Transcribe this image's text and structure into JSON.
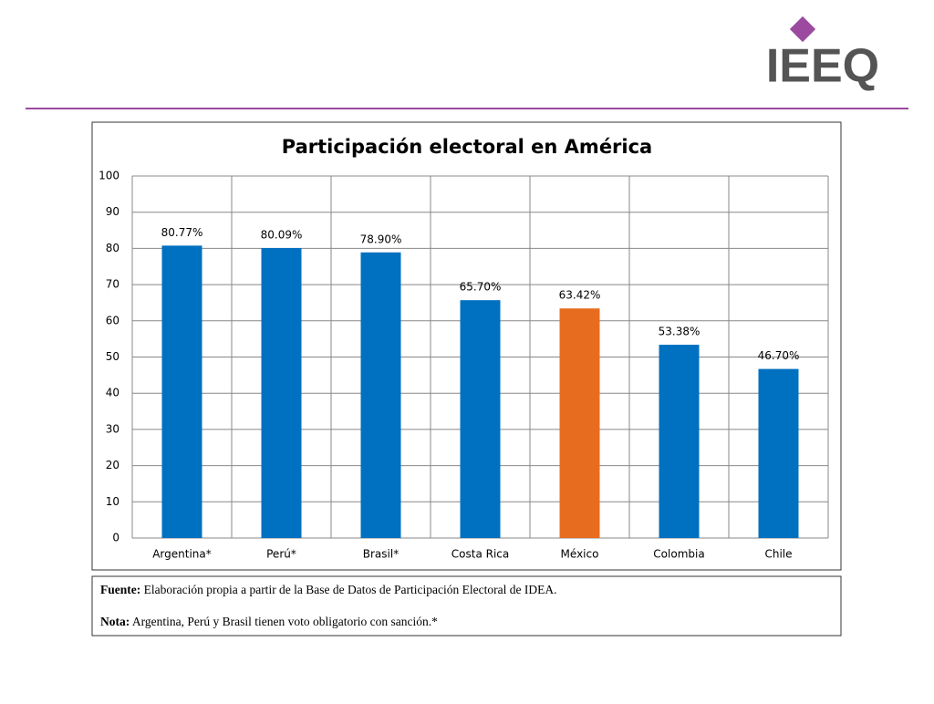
{
  "logo": "IEEQ",
  "chart_data": {
    "type": "bar",
    "title": "Participación electoral en América",
    "categories": [
      "Argentina*",
      "Perú*",
      "Brasil*",
      "Costa Rica",
      "México",
      "Colombia",
      "Chile"
    ],
    "values": [
      80.77,
      80.09,
      78.9,
      65.7,
      63.42,
      53.38,
      46.7
    ],
    "value_labels": [
      "80.77%",
      "80.09%",
      "78.90%",
      "65.70%",
      "63.42%",
      "53.38%",
      "46.70%"
    ],
    "colors": [
      "#0070c0",
      "#0070c0",
      "#0070c0",
      "#0070c0",
      "#e86c1f",
      "#0070c0",
      "#0070c0"
    ],
    "ylim": [
      0,
      100
    ],
    "yticks": [
      0,
      10,
      20,
      30,
      40,
      50,
      60,
      70,
      80,
      90,
      100
    ],
    "grid": true
  },
  "notes": [
    {
      "label": "Fuente:",
      "text": "Elaboración propia a partir de la Base de Datos de Participación Electoral de IDEA."
    },
    {
      "label": "Nota:",
      "text": "Argentina, Perú y Brasil tienen voto obligatorio con sanción.*"
    }
  ]
}
